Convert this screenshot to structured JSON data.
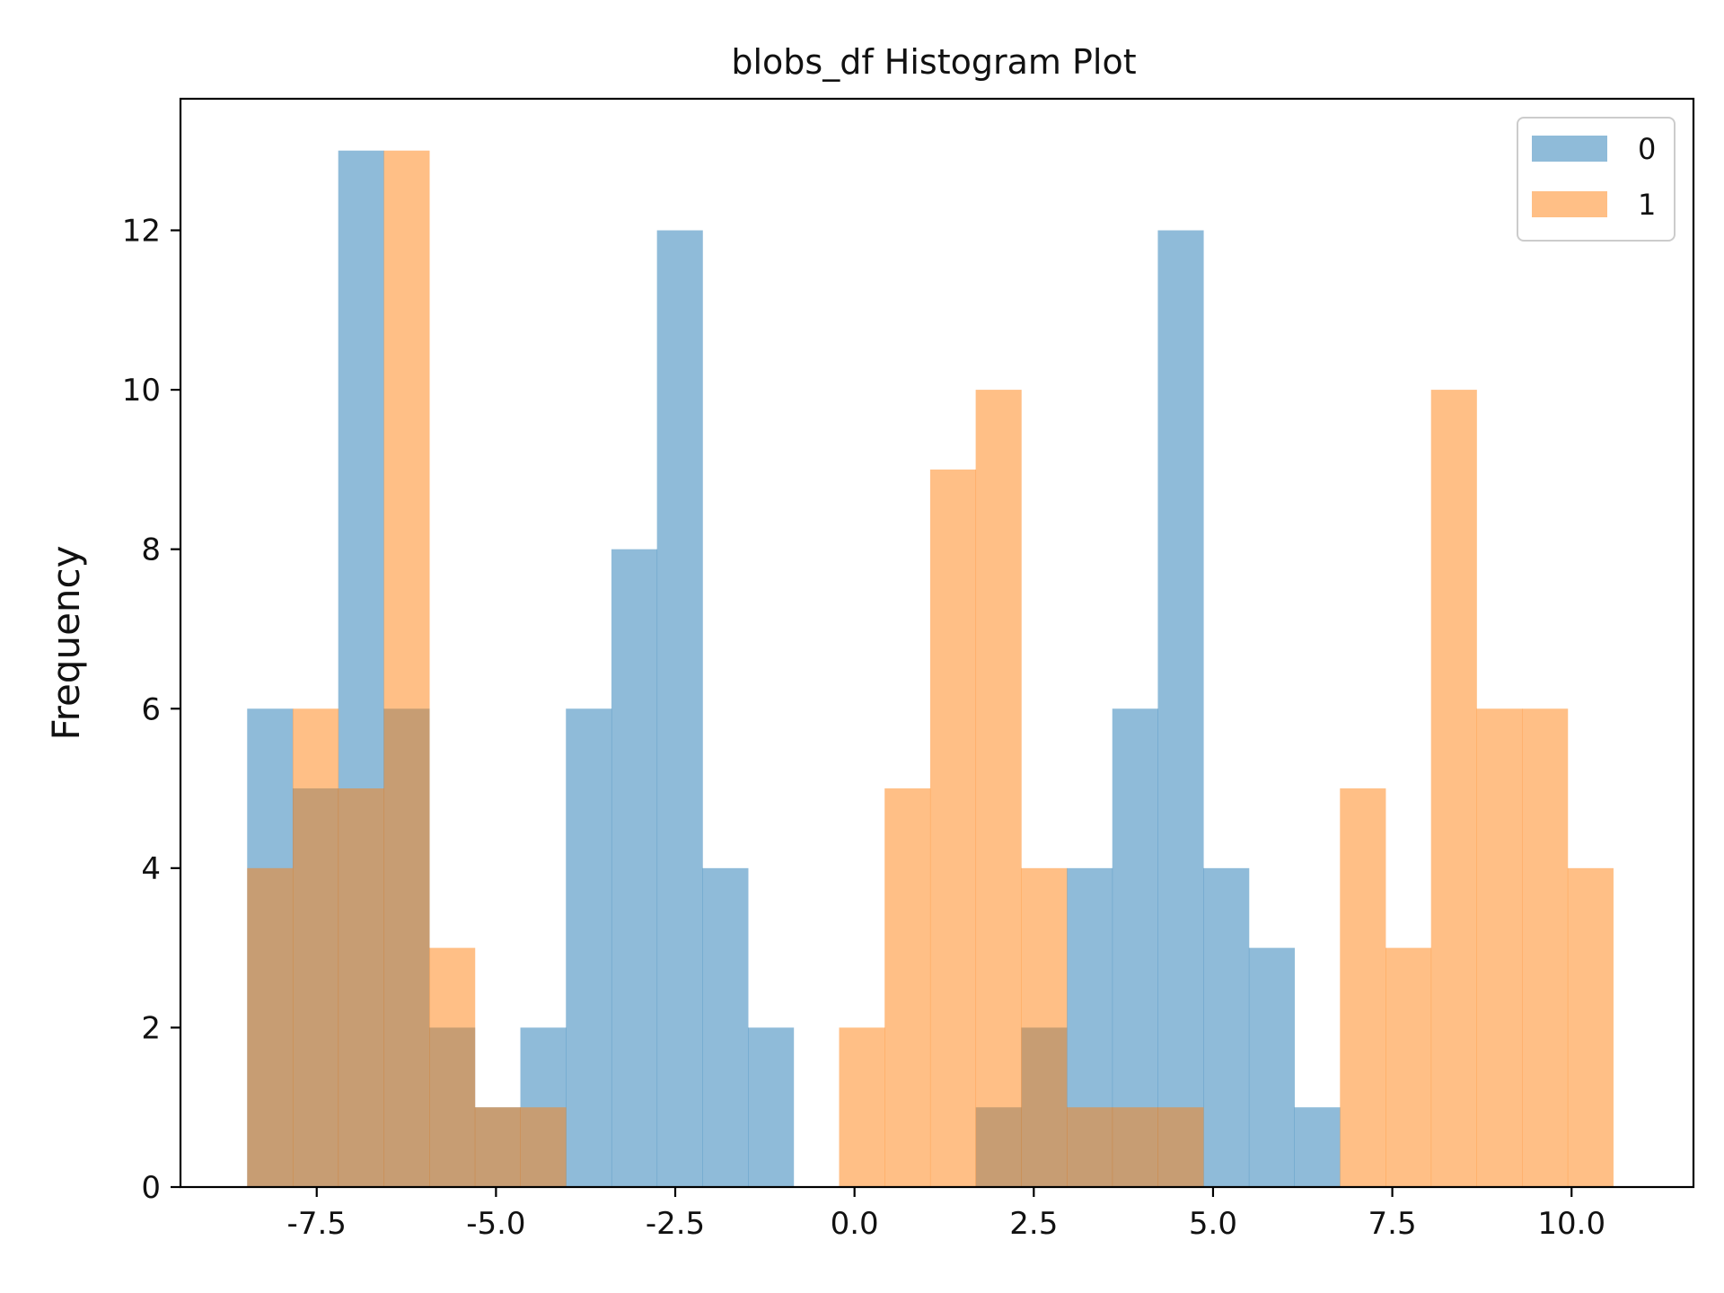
{
  "chart_data": {
    "type": "bar",
    "subtype": "overlaid-histogram",
    "title": "blobs_df Histogram Plot",
    "xlabel": "",
    "ylabel": "Frequency",
    "xlim": [
      -9.4,
      11.7
    ],
    "ylim": [
      0,
      13.65
    ],
    "xticks": [
      {
        "value": -7.5,
        "label": "-7.5"
      },
      {
        "value": -5.0,
        "label": "-5.0"
      },
      {
        "value": -2.5,
        "label": "-2.5"
      },
      {
        "value": 0.0,
        "label": "0.0"
      },
      {
        "value": 2.5,
        "label": "2.5"
      },
      {
        "value": 5.0,
        "label": "5.0"
      },
      {
        "value": 7.5,
        "label": "7.5"
      },
      {
        "value": 10.0,
        "label": "10.0"
      }
    ],
    "yticks": [
      {
        "value": 0,
        "label": "0"
      },
      {
        "value": 2,
        "label": "2"
      },
      {
        "value": 4,
        "label": "4"
      },
      {
        "value": 6,
        "label": "6"
      },
      {
        "value": 8,
        "label": "8"
      },
      {
        "value": 10,
        "label": "10"
      },
      {
        "value": 12,
        "label": "12"
      }
    ],
    "bin_edges": [
      -8.47,
      -7.835,
      -7.2,
      -6.565,
      -5.93,
      -5.295,
      -4.66,
      -4.025,
      -3.39,
      -2.755,
      -2.12,
      -1.485,
      -0.85,
      -0.215,
      0.42,
      1.055,
      1.69,
      2.325,
      2.96,
      3.595,
      4.23,
      4.865,
      5.5,
      6.135,
      6.77,
      7.405,
      8.04,
      8.675,
      9.31,
      9.945,
      10.58
    ],
    "series": [
      {
        "name": "0",
        "color": "#1f77b4",
        "opacity": 0.5,
        "values": [
          6,
          5,
          13,
          6,
          2,
          1,
          2,
          6,
          8,
          12,
          4,
          2,
          0,
          0,
          0,
          0,
          1,
          2,
          4,
          6,
          12,
          4,
          3,
          1,
          0,
          0,
          0,
          0,
          0,
          0
        ]
      },
      {
        "name": "1",
        "color": "#ff7f0e",
        "opacity": 0.5,
        "values": [
          4,
          6,
          5,
          13,
          3,
          1,
          1,
          0,
          0,
          0,
          0,
          0,
          0,
          2,
          5,
          9,
          10,
          4,
          1,
          1,
          1,
          0,
          0,
          0,
          5,
          3,
          10,
          6,
          6,
          4
        ]
      }
    ],
    "grid": false,
    "legend": "top-right"
  }
}
